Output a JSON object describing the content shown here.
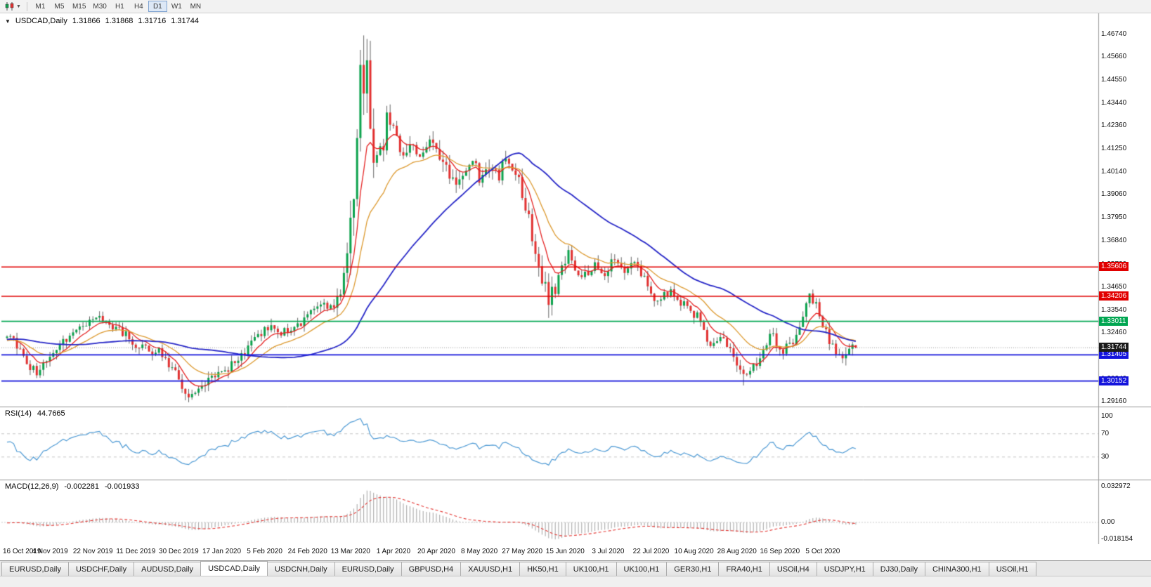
{
  "toolbar": {
    "timeframes": [
      "M1",
      "M5",
      "M15",
      "M30",
      "H1",
      "H4",
      "D1",
      "W1",
      "MN"
    ],
    "active_timeframe": "D1"
  },
  "chart": {
    "symbol": "USDCAD,Daily",
    "open": "1.31866",
    "high": "1.31868",
    "low": "1.31716",
    "close": "1.31744"
  },
  "rsi": {
    "label": "RSI(14)",
    "value": "44.7665"
  },
  "macd": {
    "label": "MACD(12,26,9)",
    "main_value": "-0.002281",
    "signal_value": "-0.001933"
  },
  "chart_data": {
    "type": "candlestick",
    "symbol": "USDCAD",
    "timeframe": "Daily",
    "title": "USDCAD,Daily",
    "ohlc_display": {
      "open": 1.31866,
      "high": 1.31868,
      "low": 1.31716,
      "close": 1.31744
    },
    "x_labels": [
      "16 Oct 2019",
      "4 Nov 2019",
      "22 Nov 2019",
      "11 Dec 2019",
      "30 Dec 2019",
      "17 Jan 2020",
      "5 Feb 2020",
      "24 Feb 2020",
      "13 Mar 2020",
      "1 Apr 2020",
      "20 Apr 2020",
      "8 May 2020",
      "27 May 2020",
      "15 Jun 2020",
      "3 Jul 2020",
      "22 Jul 2020",
      "10 Aug 2020",
      "28 Aug 2020",
      "16 Sep 2020",
      "5 Oct 2020"
    ],
    "candles_per_label": 13,
    "candle_count": 258,
    "y_axis": {
      "view_min": 1.29,
      "view_max": 1.476,
      "labels": [
        "1.46740",
        "1.45660",
        "1.44550",
        "1.43440",
        "1.42360",
        "1.41250",
        "1.40140",
        "1.39060",
        "1.37950",
        "1.36840",
        "1.35730",
        "1.34650",
        "1.33540",
        "1.32460",
        "1.31350",
        "1.30240",
        "1.29160"
      ]
    },
    "price_path": [
      [
        0,
        1.3235
      ],
      [
        3,
        1.318
      ],
      [
        6,
        1.3105
      ],
      [
        9,
        1.3062
      ],
      [
        11,
        1.3085
      ],
      [
        13,
        1.314
      ],
      [
        16,
        1.32
      ],
      [
        20,
        1.324
      ],
      [
        23,
        1.3265
      ],
      [
        26,
        1.3298
      ],
      [
        29,
        1.331
      ],
      [
        32,
        1.3282
      ],
      [
        35,
        1.325
      ],
      [
        37,
        1.3228
      ],
      [
        39,
        1.3185
      ],
      [
        41,
        1.3168
      ],
      [
        44,
        1.3162
      ],
      [
        46,
        1.3172
      ],
      [
        48,
        1.312
      ],
      [
        50,
        1.3078
      ],
      [
        52,
        1.3012
      ],
      [
        55,
        1.2958
      ],
      [
        57,
        1.2972
      ],
      [
        59,
        1.3
      ],
      [
        62,
        1.3042
      ],
      [
        65,
        1.3058
      ],
      [
        68,
        1.309
      ],
      [
        71,
        1.314
      ],
      [
        74,
        1.32
      ],
      [
        77,
        1.3252
      ],
      [
        79,
        1.3268
      ],
      [
        82,
        1.3248
      ],
      [
        85,
        1.3262
      ],
      [
        88,
        1.329
      ],
      [
        91,
        1.3322
      ],
      [
        93,
        1.336
      ],
      [
        95,
        1.3398
      ],
      [
        97,
        1.3372
      ],
      [
        99,
        1.3385
      ],
      [
        101,
        1.3428
      ],
      [
        103,
        1.3648
      ],
      [
        105,
        1.389
      ],
      [
        106,
        1.412
      ],
      [
        107,
        1.447
      ],
      [
        108,
        1.4385
      ],
      [
        109,
        1.451
      ],
      [
        110,
        1.428
      ],
      [
        111,
        1.402
      ],
      [
        112,
        1.4105
      ],
      [
        113,
        1.416
      ],
      [
        114,
        1.409
      ],
      [
        115,
        1.4325
      ],
      [
        116,
        1.428
      ],
      [
        117,
        1.4235
      ],
      [
        119,
        1.4095
      ],
      [
        121,
        1.411
      ],
      [
        123,
        1.4175
      ],
      [
        125,
        1.409
      ],
      [
        127,
        1.4125
      ],
      [
        129,
        1.416
      ],
      [
        131,
        1.4075
      ],
      [
        133,
        1.4025
      ],
      [
        135,
        1.3965
      ],
      [
        137,
        1.4005
      ],
      [
        139,
        1.399
      ],
      [
        141,
        1.4078
      ],
      [
        143,
        1.3985
      ],
      [
        145,
        1.4035
      ],
      [
        147,
        1.4062
      ],
      [
        149,
        1.3995
      ],
      [
        151,
        1.4105
      ],
      [
        153,
        1.4015
      ],
      [
        155,
        1.396
      ],
      [
        156,
        1.3905
      ],
      [
        158,
        1.3772
      ],
      [
        160,
        1.3625
      ],
      [
        162,
        1.3505
      ],
      [
        164,
        1.3402
      ],
      [
        166,
        1.3448
      ],
      [
        168,
        1.3562
      ],
      [
        170,
        1.3618
      ],
      [
        172,
        1.3555
      ],
      [
        175,
        1.3515
      ],
      [
        178,
        1.3572
      ],
      [
        181,
        1.354
      ],
      [
        184,
        1.3598
      ],
      [
        187,
        1.3555
      ],
      [
        190,
        1.3585
      ],
      [
        193,
        1.3512
      ],
      [
        195,
        1.3422
      ],
      [
        197,
        1.3392
      ],
      [
        199,
        1.3418
      ],
      [
        201,
        1.3442
      ],
      [
        203,
        1.3405
      ],
      [
        205,
        1.3382
      ],
      [
        207,
        1.3352
      ],
      [
        209,
        1.3322
      ],
      [
        211,
        1.3248
      ],
      [
        213,
        1.3205
      ],
      [
        215,
        1.3188
      ],
      [
        217,
        1.3222
      ],
      [
        219,
        1.3155
      ],
      [
        221,
        1.3092
      ],
      [
        223,
        1.3038
      ],
      [
        225,
        1.3065
      ],
      [
        227,
        1.3105
      ],
      [
        229,
        1.3148
      ],
      [
        231,
        1.3262
      ],
      [
        233,
        1.3205
      ],
      [
        235,
        1.3168
      ],
      [
        237,
        1.3182
      ],
      [
        239,
        1.3225
      ],
      [
        241,
        1.3338
      ],
      [
        243,
        1.3412
      ],
      [
        245,
        1.338
      ],
      [
        247,
        1.3292
      ],
      [
        249,
        1.3215
      ],
      [
        251,
        1.3148
      ],
      [
        253,
        1.3128
      ],
      [
        255,
        1.3162
      ],
      [
        257,
        1.31744
      ]
    ],
    "volatility": [
      [
        0,
        0.0042
      ],
      [
        100,
        0.007
      ],
      [
        104,
        0.014
      ],
      [
        112,
        0.009
      ],
      [
        118,
        0.0065
      ],
      [
        150,
        0.006
      ],
      [
        157,
        0.0075
      ],
      [
        166,
        0.0055
      ],
      [
        172,
        0.0045
      ],
      [
        195,
        0.0042
      ],
      [
        240,
        0.0048
      ]
    ],
    "extremes": [
      {
        "index": 108,
        "kind": "high",
        "price": 1.4668
      },
      {
        "index": 55,
        "kind": "low",
        "price": 1.2952
      },
      {
        "index": 164,
        "kind": "low",
        "price": 1.3317
      },
      {
        "index": 223,
        "kind": "low",
        "price": 1.2994
      },
      {
        "index": 243,
        "kind": "high",
        "price": 1.3421
      }
    ],
    "last_candle": {
      "o": 1.31866,
      "h": 1.31868,
      "l": 1.31716,
      "c": 1.31744
    },
    "levels": [
      {
        "price": 1.35606,
        "label": "1.35606",
        "color": "#e10000",
        "width": 1.4
      },
      {
        "price": 1.34206,
        "label": "1.34206",
        "color": "#e10000",
        "width": 1.4
      },
      {
        "price": 1.33011,
        "label": "1.33011",
        "color": "#00a651",
        "width": 1.8
      },
      {
        "price": 1.31405,
        "label": "1.31405",
        "color": "#1414dc",
        "width": 1.8
      },
      {
        "price": 1.30152,
        "label": "1.30152",
        "color": "#1414dc",
        "width": 1.8
      }
    ],
    "current_price": {
      "value": 1.31744,
      "label": "1.31744",
      "color": "#1a1a1a"
    },
    "moving_averages": [
      {
        "period": 8,
        "method": "ema",
        "color": "#e52222",
        "width": 1.3
      },
      {
        "period": 20,
        "method": "ema",
        "color": "#dd9a30",
        "width": 1.3
      },
      {
        "period": 50,
        "method": "sma",
        "color": "#2828c8",
        "width": 1.8
      }
    ],
    "candle_colors": {
      "up": "#0ca24d",
      "down": "#e23030",
      "wick": "#3d3d3d"
    },
    "rsi": {
      "period": 14,
      "value": 44.7665,
      "color": "#4f9bd5",
      "levels": [
        70,
        30
      ],
      "axis_labels": [
        "100",
        "70",
        "30"
      ]
    },
    "macd": {
      "fast": 12,
      "slow": 26,
      "signal": 9,
      "main": -0.002281,
      "signal_value": -0.001933,
      "axis_labels": [
        "0.032972",
        "0.00",
        "-0.018154"
      ],
      "histogram_color": "#a3a3a3",
      "signal_color": "#e53935"
    }
  },
  "tab_bar": {
    "tabs": [
      {
        "label": "EURUSD,Daily",
        "active": false
      },
      {
        "label": "USDCHF,Daily",
        "active": false
      },
      {
        "label": "AUDUSD,Daily",
        "active": false
      },
      {
        "label": "USDCAD,Daily",
        "active": true
      },
      {
        "label": "USDCNH,Daily",
        "active": false
      },
      {
        "label": "EURUSD,Daily",
        "active": false
      },
      {
        "label": "GBPUSD,H4",
        "active": false
      },
      {
        "label": "XAUUSD,H1",
        "active": false
      },
      {
        "label": "HK50,H1",
        "active": false
      },
      {
        "label": "UK100,H1",
        "active": false
      },
      {
        "label": "UK100,H1",
        "active": false
      },
      {
        "label": "GER30,H1",
        "active": false
      },
      {
        "label": "FRA40,H1",
        "active": false
      },
      {
        "label": "USOil,H4",
        "active": false
      },
      {
        "label": "USDJPY,H1",
        "active": false
      },
      {
        "label": "DJ30,Daily",
        "active": false
      },
      {
        "label": "CHINA300,H1",
        "active": false
      },
      {
        "label": "USOil,H1",
        "active": false
      }
    ]
  }
}
